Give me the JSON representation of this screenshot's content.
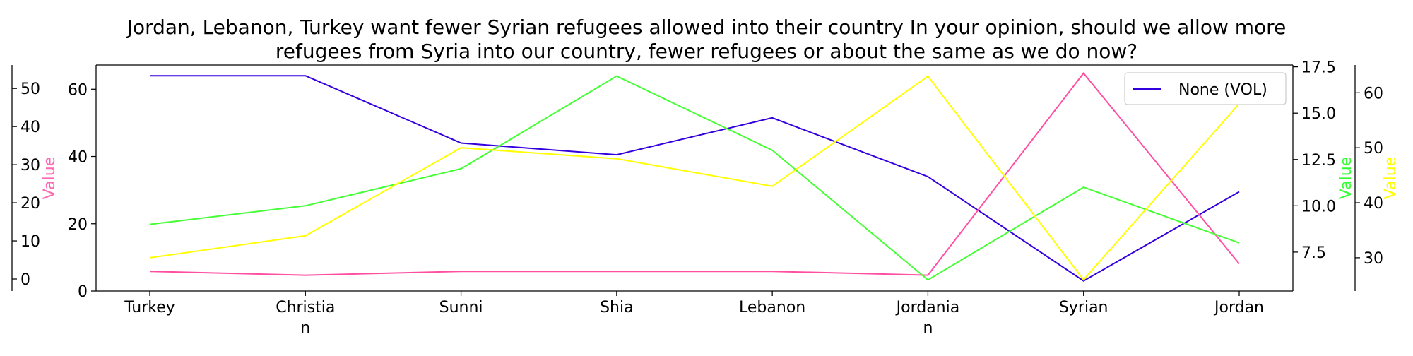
{
  "chart_data": {
    "type": "line",
    "title_lines": [
      "Jordan, Lebanon, Turkey want fewer Syrian refugees allowed into their country In your opinion, should we allow more",
      "refugees from Syria into our country, fewer refugees or about the same as we do now?"
    ],
    "categories": [
      "Turkey",
      "Christian",
      "Sunni",
      "Shia",
      "Lebanon",
      "Jordanian",
      "Syrian",
      "Jordan"
    ],
    "category_labels": [
      [
        "Turkey"
      ],
      [
        "Christia",
        "n"
      ],
      [
        "Sunni"
      ],
      [
        "Shia"
      ],
      [
        "Lebanon"
      ],
      [
        "Jordania",
        "n"
      ],
      [
        "Syrian"
      ],
      [
        "Jordan"
      ]
    ],
    "axes": [
      {
        "id": "main",
        "ticks": [
          0,
          20,
          40,
          60
        ],
        "ylim": [
          0,
          67.2
        ],
        "ylabel": "",
        "position": "left"
      },
      {
        "id": "pink",
        "ticks": [
          0,
          10,
          20,
          30,
          40,
          50
        ],
        "ylim": [
          -3.15,
          56.15
        ],
        "ylabel": "Value",
        "label_color": "#ff69b4",
        "position": "left-outer"
      },
      {
        "id": "green",
        "ticks": [
          7.5,
          10.0,
          12.5,
          15.0,
          17.5
        ],
        "ylim": [
          5.4,
          17.6
        ],
        "ylabel": "Value",
        "label_color": "#33ff33",
        "position": "right"
      },
      {
        "id": "yellow",
        "ticks": [
          30,
          40,
          50,
          60
        ],
        "ylim": [
          23.95,
          65.05
        ],
        "ylabel": "Value",
        "label_color": "#ffff00",
        "position": "right-outer"
      }
    ],
    "series": [
      {
        "name": "None (VOL)",
        "axis": "main",
        "color": "#3300dd",
        "values": [
          64,
          64,
          44,
          40.5,
          51.5,
          34,
          3,
          29.5
        ]
      },
      {
        "axis": "pink",
        "color": "#ff4fa3",
        "values": [
          2,
          1,
          2,
          2,
          2,
          1,
          54,
          4
        ]
      },
      {
        "axis": "green",
        "color": "#44ff33",
        "values": [
          9,
          10,
          12,
          17,
          13,
          6,
          11,
          8
        ]
      },
      {
        "axis": "yellow",
        "color": "#ffff00",
        "values": [
          30,
          34,
          50,
          48,
          43,
          63,
          26,
          58
        ]
      }
    ],
    "legend": {
      "entries": [
        "None (VOL)"
      ],
      "placement": "top-right"
    }
  }
}
